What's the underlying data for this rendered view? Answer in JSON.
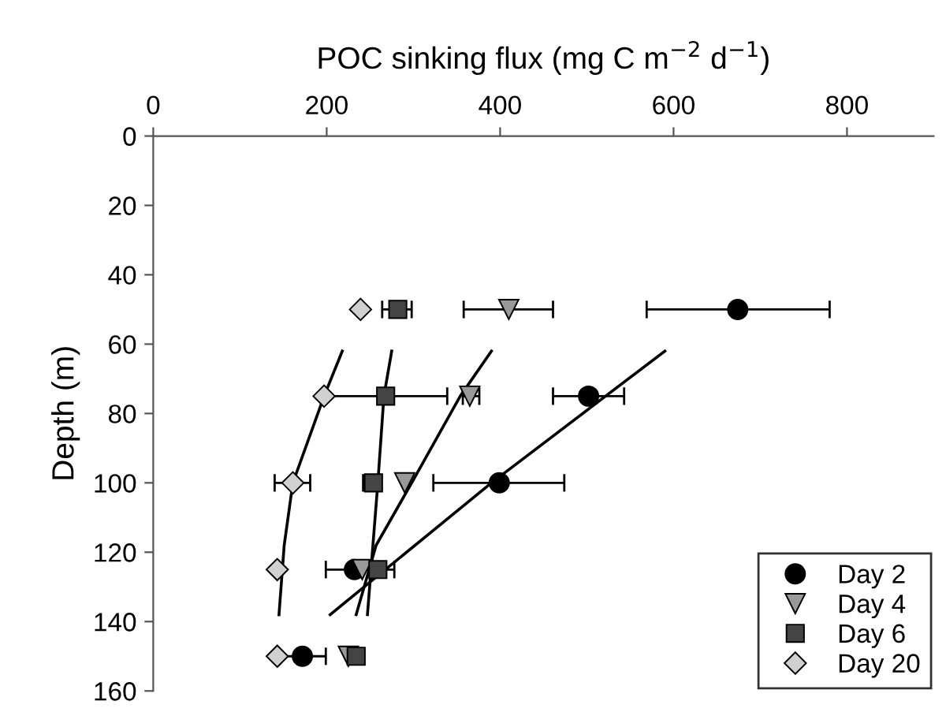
{
  "chart_data": {
    "type": "scatter",
    "xlabel": "POC sinking flux (mg C m$^{−2}$ d$^{−1}$)",
    "ylabel": "Depth (m)",
    "xlim": [
      0,
      900
    ],
    "xticks": [
      0,
      200,
      400,
      600,
      800
    ],
    "ylim": [
      160,
      0
    ],
    "yticks": [
      0,
      20,
      40,
      60,
      80,
      100,
      120,
      140,
      160
    ],
    "grid": false,
    "legend": "bottom right",
    "series": [
      {
        "name": "Day 2",
        "marker": "circle",
        "color": "#000000",
        "x": [
          674,
          502,
          399,
          232,
          172
        ],
        "values": [
          50,
          75,
          100,
          125,
          150
        ],
        "xerrors": [
          [
            569,
            780
          ],
          [
            461,
            543
          ],
          [
            323,
            474
          ],
          [
            199,
            265
          ],
          [
            145,
            199
          ]
        ]
      },
      {
        "name": "Day 4",
        "marker": "triangle",
        "color": "#999999",
        "x": [
          410,
          365,
          290,
          241,
          225
        ],
        "values": [
          50,
          75,
          100,
          125,
          150
        ],
        "xerrors": [
          [
            358,
            461
          ],
          [
            357,
            376
          ],
          null,
          null,
          null
        ]
      },
      {
        "name": "Day 6",
        "marker": "square",
        "color": "#444444",
        "x": [
          282,
          268,
          254,
          259,
          234
        ],
        "values": [
          50,
          75,
          100,
          125,
          150
        ],
        "xerrors": [
          [
            264,
            298
          ],
          [
            197,
            339
          ],
          [
            242,
            262
          ],
          [
            240,
            278
          ],
          null
        ]
      },
      {
        "name": "Day 20",
        "marker": "diamond",
        "color": "#d0d0d0",
        "x": [
          239,
          197,
          161,
          143,
          143
        ],
        "values": [
          50,
          75,
          100,
          125,
          150
        ],
        "xerrors": [
          null,
          null,
          [
            140,
            181
          ],
          null,
          null
        ]
      },
      {
        "type": "line",
        "color": "#000000",
        "x": [
          590,
          390,
          204
        ],
        "values": [
          62,
          100,
          138
        ]
      },
      {
        "type": "line",
        "color": "#000000",
        "x": [
          390,
          354,
          298,
          257,
          234
        ],
        "values": [
          62,
          75,
          100,
          118,
          138
        ]
      },
      {
        "type": "line",
        "color": "#000000",
        "x": [
          275,
          266,
          259,
          247
        ],
        "values": [
          62,
          75,
          100,
          138
        ]
      },
      {
        "type": "line",
        "color": "#000000",
        "x": [
          218,
          197,
          161,
          151,
          145
        ],
        "values": [
          62,
          75,
          100,
          118,
          138
        ]
      }
    ]
  }
}
